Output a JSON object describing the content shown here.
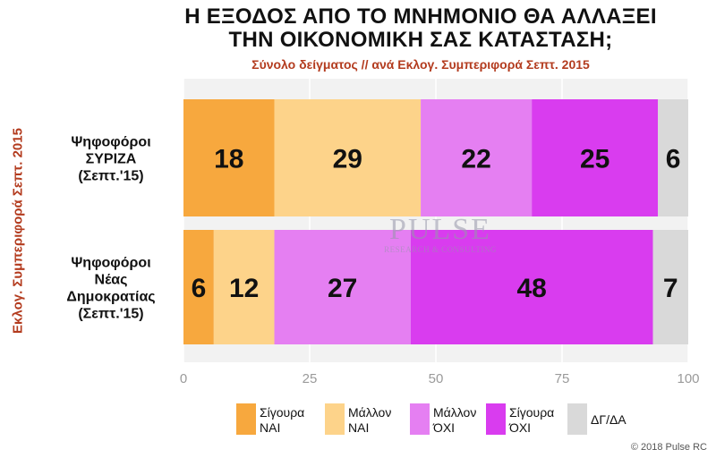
{
  "title_line1": "Η ΕΞΟΔΟΣ ΑΠΟ ΤΟ ΜΝΗΜΟΝΙΟ ΘΑ ΑΛΛΑΞΕΙ",
  "title_line2": "ΤΗΝ ΟΙΚΟΝΟΜΙΚΗ ΣΑΣ ΚΑΤΑΣΤΑΣΗ;",
  "subtitle": "Σύνολο δείγματος // ανά Εκλογ. Συμπεριφορά Σεπτ. 2015",
  "side_label": "Εκλογ. Συμπεριφορά Σεπτ. 2015",
  "watermark": {
    "line1": "PULSE",
    "line2": "RESEARCH & CONSULTING"
  },
  "copyright": "© 2018 Pulse RC",
  "chart_data": {
    "type": "bar",
    "orientation": "horizontal",
    "stacked": true,
    "categories": [
      [
        "Ψηφοφόροι",
        "ΣΥΡΙΖΑ",
        "(Σεπτ.'15)"
      ],
      [
        "Ψηφοφόροι",
        "Νέας",
        "Δημοκρατίας",
        "(Σεπτ.'15)"
      ]
    ],
    "series": [
      {
        "name": "Σίγουρα ΝΑΙ",
        "legend_lines": [
          "Σίγουρα",
          "ΝΑΙ"
        ],
        "color": "#f7a83e",
        "values": [
          18,
          6
        ]
      },
      {
        "name": "Μάλλον ΝΑΙ",
        "legend_lines": [
          "Μάλλον",
          "ΝΑΙ"
        ],
        "color": "#fdd38a",
        "values": [
          29,
          12
        ]
      },
      {
        "name": "Μάλλον ΌΧΙ",
        "legend_lines": [
          "Μάλλον",
          "ΌΧΙ"
        ],
        "color": "#e57ff2",
        "values": [
          22,
          27
        ]
      },
      {
        "name": "Σίγουρα ΌΧΙ",
        "legend_lines": [
          "Σίγουρα",
          "ΌΧΙ"
        ],
        "color": "#d93cef",
        "values": [
          25,
          48
        ]
      },
      {
        "name": "ΔΓ/ΔΑ",
        "legend_lines": [
          "ΔΓ/ΔΑ"
        ],
        "color": "#d9d9d9",
        "values": [
          6,
          7
        ]
      }
    ],
    "xlim": [
      0,
      100
    ],
    "xticks": [
      0,
      25,
      50,
      75,
      100
    ],
    "grid": true,
    "legend_position": "bottom"
  }
}
